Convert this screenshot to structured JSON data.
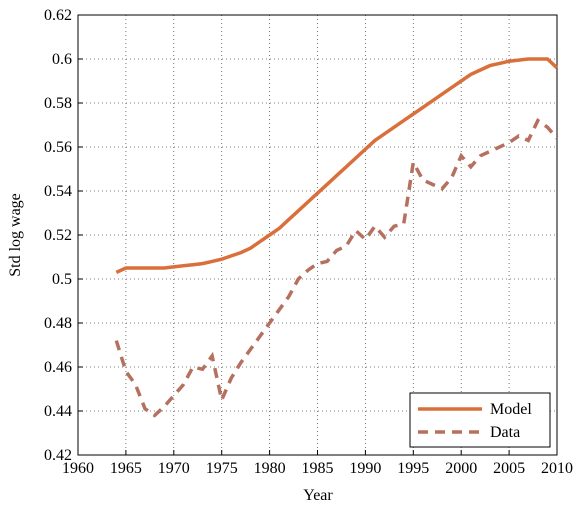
{
  "chart_data": {
    "type": "line",
    "x_label": "Year",
    "y_label": "Std log wage",
    "x": [
      1964,
      1965,
      1966,
      1967,
      1968,
      1969,
      1970,
      1971,
      1972,
      1973,
      1974,
      1975,
      1976,
      1977,
      1978,
      1979,
      1980,
      1981,
      1982,
      1983,
      1984,
      1985,
      1986,
      1987,
      1988,
      1989,
      1990,
      1991,
      1992,
      1993,
      1994,
      1995,
      1996,
      1997,
      1998,
      1999,
      2000,
      2001,
      2002,
      2003,
      2004,
      2005,
      2006,
      2007,
      2008,
      2009,
      2010
    ],
    "series": [
      {
        "name": "Model",
        "color": "#d9703c",
        "dash": false,
        "values": [
          0.503,
          0.505,
          0.505,
          0.505,
          0.505,
          0.505,
          0.5055,
          0.506,
          0.5065,
          0.507,
          0.508,
          0.509,
          0.5105,
          0.512,
          0.514,
          0.517,
          0.52,
          0.523,
          0.527,
          0.531,
          0.535,
          0.539,
          0.543,
          0.547,
          0.551,
          0.555,
          0.559,
          0.563,
          0.566,
          0.569,
          0.572,
          0.575,
          0.578,
          0.581,
          0.584,
          0.587,
          0.59,
          0.593,
          0.595,
          0.597,
          0.598,
          0.599,
          0.5995,
          0.6,
          0.6,
          0.6,
          0.596
        ]
      },
      {
        "name": "Data",
        "color": "#b5705f",
        "dash": true,
        "values": [
          0.472,
          0.458,
          0.452,
          0.441,
          0.438,
          0.442,
          0.447,
          0.452,
          0.46,
          0.459,
          0.465,
          0.445,
          0.455,
          0.462,
          0.468,
          0.474,
          0.48,
          0.486,
          0.492,
          0.5,
          0.504,
          0.507,
          0.508,
          0.513,
          0.515,
          0.522,
          0.518,
          0.524,
          0.519,
          0.524,
          0.525,
          0.553,
          0.545,
          0.543,
          0.541,
          0.546,
          0.556,
          0.551,
          0.556,
          0.558,
          0.56,
          0.562,
          0.565,
          0.563,
          0.572,
          0.569,
          0.564
        ]
      }
    ],
    "xlim": [
      1960,
      2010
    ],
    "xticks": [
      1960,
      1965,
      1970,
      1975,
      1980,
      1985,
      1990,
      1995,
      2000,
      2005,
      2010
    ],
    "ylim": [
      0.42,
      0.62
    ],
    "yticks": [
      0.42,
      0.44,
      0.46,
      0.48,
      0.5,
      0.52,
      0.54,
      0.56,
      0.58,
      0.6,
      0.62
    ],
    "grid": true,
    "legend": "lower right"
  }
}
